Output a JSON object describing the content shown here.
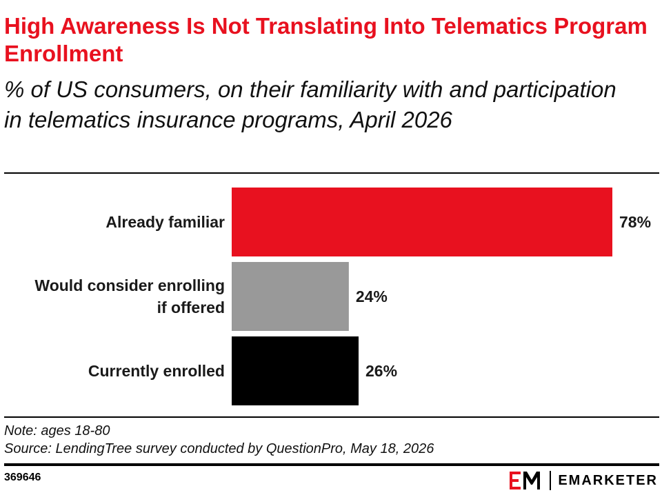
{
  "title": "High Awareness Is Not Translating Into Telematics Program Enrollment",
  "subtitle": "% of US consumers, on their familiarity with and participation in telematics insurance programs, April 2026",
  "chart_data": {
    "type": "bar",
    "orientation": "horizontal",
    "title": "High Awareness Is Not Translating Into Telematics Program Enrollment",
    "subtitle": "% of US consumers, on their familiarity with and participation in telematics insurance programs, April 2026",
    "categories": [
      [
        "Already familiar"
      ],
      [
        "Would consider enrolling",
        "if offered"
      ],
      [
        "Currently enrolled"
      ]
    ],
    "values": [
      78,
      24,
      26
    ],
    "value_labels": [
      "78%",
      "24%",
      "26%"
    ],
    "colors": [
      "#e8111f",
      "#999999",
      "#000000"
    ],
    "xlim": [
      0,
      80
    ],
    "grid": false,
    "legend": "none"
  },
  "footer": {
    "note": "Note: ages 18-80",
    "source": "Source: LendingTree survey conducted by QuestionPro, May 18, 2026",
    "chart_id": "369646",
    "brand_name": "EMARKETER",
    "brand_logo": "EM"
  }
}
